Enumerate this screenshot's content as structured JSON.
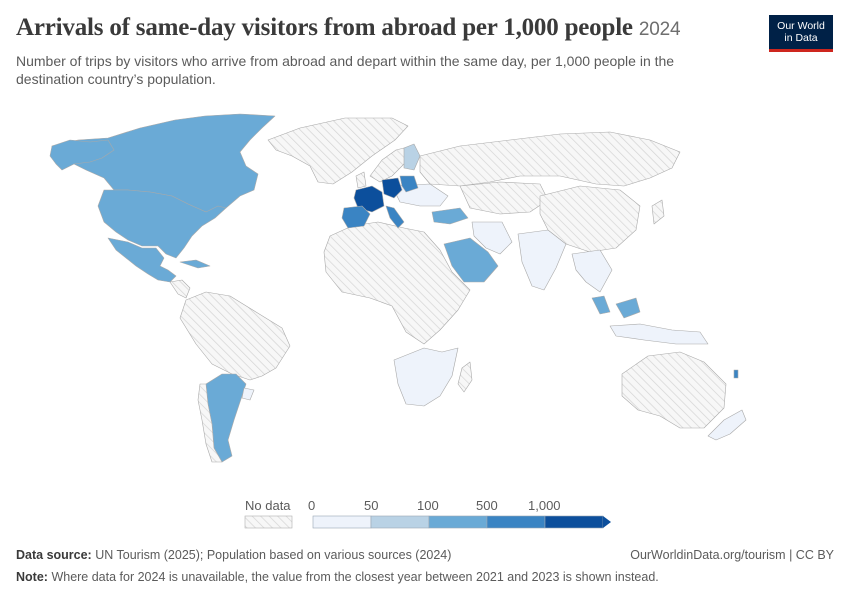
{
  "header": {
    "title": "Arrivals of same-day visitors from abroad per 1,000 people",
    "year": "2024",
    "subtitle": "Number of trips by visitors who arrive from abroad and depart within the same day, per 1,000 people in the destination country’s population."
  },
  "logo": {
    "line1": "Our World",
    "line2": "in Data"
  },
  "legend": {
    "no_data_label": "No data",
    "ticks": [
      "0",
      "50",
      "100",
      "500",
      "1,000"
    ],
    "colors": [
      "#eef3fb",
      "#b9d2e5",
      "#6aaad6",
      "#3a84c3",
      "#0c4f9c"
    ],
    "no_data_color": "#f2f2f2"
  },
  "map": {
    "regions": [
      {
        "name": "Canada",
        "bin": 2
      },
      {
        "name": "United States",
        "bin": 2
      },
      {
        "name": "Mexico",
        "bin": 2
      },
      {
        "name": "Argentina",
        "bin": 2
      },
      {
        "name": "Saudi Arabia",
        "bin": 2
      },
      {
        "name": "France",
        "bin": 4
      },
      {
        "name": "Spain",
        "bin": 3
      },
      {
        "name": "Italy",
        "bin": 3
      },
      {
        "name": "Germany",
        "bin": 4
      },
      {
        "name": "Poland",
        "bin": 3
      },
      {
        "name": "Finland",
        "bin": 1
      },
      {
        "name": "Malaysia",
        "bin": 2
      },
      {
        "name": "Russia",
        "bin": -1
      },
      {
        "name": "China",
        "bin": -1
      },
      {
        "name": "Brazil",
        "bin": -1
      },
      {
        "name": "Australia",
        "bin": -1
      }
    ]
  },
  "footer": {
    "source_label": "Data source:",
    "source_text": "UN Tourism (2025); Population based on various sources (2024)",
    "site": "OurWorldinData.org/tourism | CC BY",
    "note_label": "Note:",
    "note_text": "Where data for 2024 is unavailable, the value from the closest year between 2021 and 2023 is shown instead."
  }
}
